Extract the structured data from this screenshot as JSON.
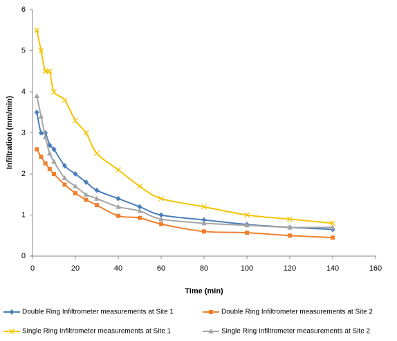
{
  "chart_data": {
    "type": "line",
    "x_label": "Time (min)",
    "y_label": "Infiltration (mm/min)",
    "x": [
      2,
      4,
      6,
      8,
      10,
      15,
      20,
      25,
      30,
      40,
      50,
      60,
      80,
      100,
      120,
      140
    ],
    "series": [
      {
        "name": "Double Ring Infiltrometer measurements at Site 1",
        "color": "#4a7ebb",
        "marker": "diamond",
        "values": [
          3.5,
          3.0,
          3.0,
          2.7,
          2.6,
          2.2,
          2.0,
          1.8,
          1.6,
          1.4,
          1.2,
          1.0,
          0.88,
          0.77,
          0.7,
          0.65
        ]
      },
      {
        "name": "Double Ring Infiltrometer measurements at Site 2",
        "color": "#f07f2e",
        "marker": "square",
        "values": [
          2.6,
          2.42,
          2.26,
          2.12,
          2.0,
          1.74,
          1.53,
          1.37,
          1.24,
          0.98,
          0.93,
          0.78,
          0.6,
          0.57,
          0.5,
          0.45
        ]
      },
      {
        "name": "Single Ring Infiltrometer measurements at Site 1",
        "color": "#f5c400",
        "marker": "x",
        "values": [
          5.5,
          5.0,
          4.5,
          4.5,
          4.0,
          3.8,
          3.3,
          3.0,
          2.5,
          2.1,
          1.7,
          1.4,
          1.2,
          1.0,
          0.9,
          0.8
        ]
      },
      {
        "name": "Single Ring Infiltrometer measurements at Site 2",
        "color": "#a5a5a5",
        "marker": "triangle",
        "values": [
          3.9,
          3.4,
          2.9,
          2.5,
          2.3,
          1.9,
          1.7,
          1.5,
          1.4,
          1.2,
          1.1,
          0.9,
          0.8,
          0.75,
          0.7,
          0.7
        ]
      }
    ],
    "xlim": [
      0,
      160
    ],
    "xticks": [
      0,
      20,
      40,
      60,
      80,
      100,
      120,
      140,
      160
    ],
    "ylim": [
      0,
      6
    ],
    "yticks": [
      0,
      1,
      2,
      3,
      4,
      5,
      6
    ],
    "grid": false,
    "legend": "bottom"
  }
}
